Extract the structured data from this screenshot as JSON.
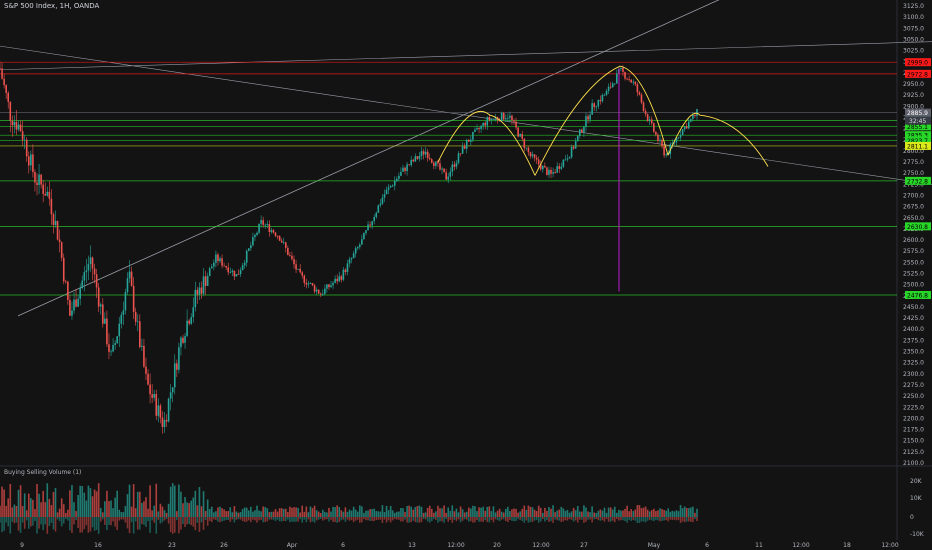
{
  "header": {
    "symbol_line": "S&P 500 Index, 1H, OANDA"
  },
  "volume_panel": {
    "label": "Buying Selling Volume (1)"
  },
  "colors": {
    "background": "#131313",
    "up_candle": "#26a69a",
    "down_candle": "#ef5350",
    "support_line": "#27d627",
    "resistance_line": "#ff1a1a",
    "trend_line": "#9a9ea8",
    "pattern_curve": "#ffe14d",
    "measure_line": "#c21bd6",
    "axis_text": "#b2b5be"
  },
  "chart_data": {
    "type": "candlestick",
    "title": "S&P 500 Index, 1H, OANDA",
    "ylim": [
      2100,
      3125
    ],
    "y_ticks": [
      3125,
      3100,
      3075,
      3050,
      3025,
      3000,
      2975,
      2950,
      2925,
      2900,
      2875,
      2850,
      2825,
      2800,
      2775,
      2750,
      2725,
      2700,
      2675,
      2650,
      2625,
      2600,
      2575,
      2550,
      2525,
      2500,
      2475,
      2450,
      2425,
      2400,
      2375,
      2350,
      2325,
      2300,
      2275,
      2250,
      2225,
      2200,
      2175,
      2150,
      2125,
      2100
    ],
    "x_ticks": [
      "9",
      "16",
      "23",
      "26",
      "Apr",
      "6",
      "13",
      "12:00",
      "20",
      "12:00",
      "27",
      "May",
      "6",
      "11",
      "12:00",
      "18",
      "12:00"
    ],
    "price_path": [
      {
        "t": 0.0,
        "p": 2985
      },
      {
        "t": 0.015,
        "p": 2880
      },
      {
        "t": 0.03,
        "p": 2850
      },
      {
        "t": 0.05,
        "p": 2740
      },
      {
        "t": 0.07,
        "p": 2700
      },
      {
        "t": 0.085,
        "p": 2600
      },
      {
        "t": 0.1,
        "p": 2430
      },
      {
        "t": 0.13,
        "p": 2560
      },
      {
        "t": 0.16,
        "p": 2330
      },
      {
        "t": 0.185,
        "p": 2520
      },
      {
        "t": 0.21,
        "p": 2280
      },
      {
        "t": 0.235,
        "p": 2185
      },
      {
        "t": 0.26,
        "p": 2380
      },
      {
        "t": 0.28,
        "p": 2470
      },
      {
        "t": 0.31,
        "p": 2560
      },
      {
        "t": 0.34,
        "p": 2520
      },
      {
        "t": 0.375,
        "p": 2640
      },
      {
        "t": 0.4,
        "p": 2610
      },
      {
        "t": 0.43,
        "p": 2520
      },
      {
        "t": 0.46,
        "p": 2480
      },
      {
        "t": 0.49,
        "p": 2520
      },
      {
        "t": 0.52,
        "p": 2600
      },
      {
        "t": 0.55,
        "p": 2700
      },
      {
        "t": 0.58,
        "p": 2760
      },
      {
        "t": 0.61,
        "p": 2800
      },
      {
        "t": 0.64,
        "p": 2740
      },
      {
        "t": 0.67,
        "p": 2820
      },
      {
        "t": 0.7,
        "p": 2870
      },
      {
        "t": 0.73,
        "p": 2880
      },
      {
        "t": 0.76,
        "p": 2790
      },
      {
        "t": 0.79,
        "p": 2745
      },
      {
        "t": 0.82,
        "p": 2800
      },
      {
        "t": 0.85,
        "p": 2900
      },
      {
        "t": 0.87,
        "p": 2930
      },
      {
        "t": 0.89,
        "p": 2980
      },
      {
        "t": 0.91,
        "p": 2950
      },
      {
        "t": 0.93,
        "p": 2870
      },
      {
        "t": 0.955,
        "p": 2790
      },
      {
        "t": 0.975,
        "p": 2840
      },
      {
        "t": 1.0,
        "p": 2885
      }
    ],
    "horizontal_lines": [
      {
        "price": 2999.0,
        "label": "2999.0",
        "color": "red"
      },
      {
        "price": 2972.8,
        "label": "2972.8",
        "color": "red"
      },
      {
        "price": 2885.9,
        "label": "2885.9",
        "color": "gray"
      },
      {
        "price": 2867.9,
        "label": "2867.9",
        "color": "green"
      },
      {
        "price": 2855.1,
        "label": "2855.1",
        "color": "green"
      },
      {
        "price": 2835.3,
        "label": "2835.3",
        "color": "green"
      },
      {
        "price": 2823.7,
        "label": "2823.7",
        "color": "green"
      },
      {
        "price": 2811.1,
        "label": "2811.1",
        "color": "yellow"
      },
      {
        "price": 2732.8,
        "label": "2732.8",
        "color": "green"
      },
      {
        "price": 2630.8,
        "label": "2630.8",
        "color": "green"
      },
      {
        "price": 2476.8,
        "label": "2476.8",
        "color": "green"
      }
    ],
    "countdown_label": "32:45",
    "volume": {
      "ylim": [
        -10000,
        25000
      ],
      "y_ticks": [
        "20K",
        "10K",
        "0",
        "-10K"
      ]
    }
  }
}
